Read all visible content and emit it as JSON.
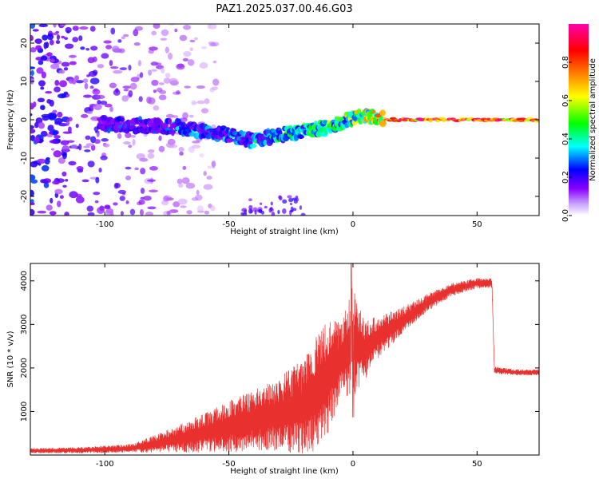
{
  "figure_title": "PAZ1.2025.037.00.46.G03",
  "chart_data": [
    {
      "type": "heatmap",
      "name": "spectrogram",
      "xlabel": "Height of straight line (km)",
      "ylabel": "Frequency (Hz)",
      "xlim": [
        -130,
        75
      ],
      "ylim": [
        -25,
        25
      ],
      "xticks": [
        -100,
        -50,
        0,
        50
      ],
      "yticks": [
        -20,
        -10,
        0,
        10,
        20
      ],
      "colorbar": {
        "label": "Normalized spectral amplitude",
        "range": [
          0,
          1
        ],
        "ticks": [
          "0.0",
          "0.2",
          "0.4",
          "0.6",
          "0.8"
        ],
        "tick_values": [
          0,
          0.2,
          0.4,
          0.6,
          0.8
        ],
        "colormap": [
          "#ffffff",
          "#8a00ff",
          "#0000ff",
          "#00ffff",
          "#00ff00",
          "#ffff00",
          "#ff8000",
          "#ff0000",
          "#ff00aa"
        ]
      },
      "ridge": {
        "x": [
          -100,
          -90,
          -80,
          -70,
          -60,
          -50,
          -40,
          -30,
          -20,
          -10,
          0,
          5,
          10,
          15,
          20,
          30,
          40,
          50,
          60,
          75
        ],
        "y": [
          -1,
          -1.5,
          -1.5,
          -2,
          -3,
          -4,
          -5.5,
          -4,
          -3,
          -2,
          0.5,
          1,
          0.3,
          0,
          0,
          0,
          0,
          0,
          0,
          0
        ],
        "amplitude": [
          0.25,
          0.3,
          0.25,
          0.35,
          0.35,
          0.35,
          0.4,
          0.45,
          0.5,
          0.55,
          0.6,
          0.7,
          0.8,
          0.95,
          0.95,
          0.95,
          0.9,
          0.95,
          0.9,
          0.95
        ]
      },
      "noise_region": {
        "x": [
          -130,
          -70
        ],
        "y": [
          -25,
          25
        ],
        "amplitude_max": 0.3
      }
    },
    {
      "type": "line",
      "name": "snr",
      "xlabel": "Height of straight line (km)",
      "ylabel": "SNR (10 * v/v)",
      "xlim": [
        -130,
        75
      ],
      "ylim": [
        0,
        4400
      ],
      "xticks": [
        -100,
        -50,
        0,
        50
      ],
      "yticks": [
        1000,
        2000,
        3000,
        4000
      ],
      "color": "#e8302e",
      "envelope": {
        "x": [
          -130,
          -110,
          -90,
          -80,
          -70,
          -60,
          -50,
          -40,
          -30,
          -20,
          -15,
          -10,
          -5,
          0,
          5,
          10,
          20,
          30,
          40,
          50,
          56,
          57,
          65,
          75
        ],
        "mean": [
          100,
          110,
          150,
          250,
          380,
          500,
          650,
          800,
          950,
          1100,
          1400,
          1800,
          2200,
          2600,
          2400,
          2700,
          3100,
          3500,
          3800,
          3950,
          3950,
          1950,
          1900,
          1900
        ],
        "amplitude": [
          60,
          70,
          100,
          200,
          320,
          450,
          600,
          700,
          850,
          1100,
          1300,
          1300,
          900,
          1300,
          700,
          500,
          300,
          200,
          150,
          120,
          120,
          80,
          70,
          70
        ]
      },
      "events": [
        {
          "x": -0.5,
          "value": 4400
        },
        {
          "x": -0.3,
          "value": 850
        },
        {
          "x": 57,
          "value": 1900
        }
      ]
    }
  ]
}
